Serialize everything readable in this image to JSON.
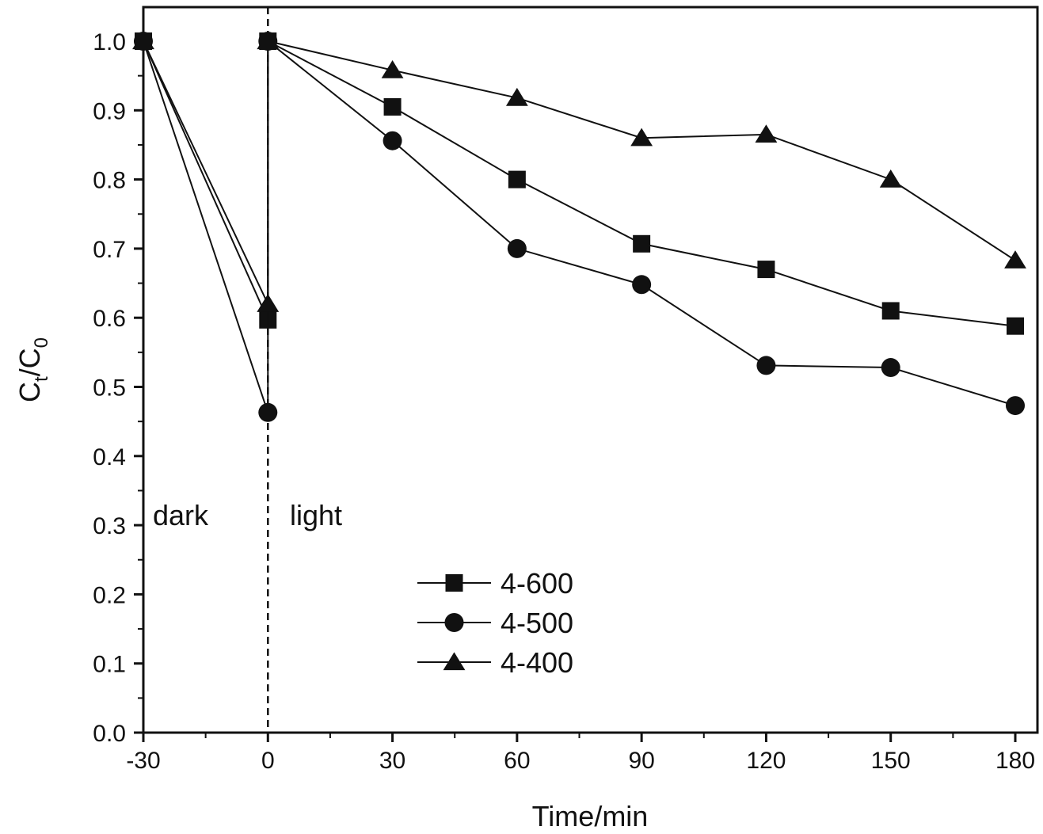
{
  "chart_data": {
    "type": "line",
    "xlabel": "Time/min",
    "ylabel": {
      "main": "C",
      "sub1": "t",
      "mid": "/C",
      "sub2": "0"
    },
    "xlim": [
      -30,
      180
    ],
    "ylim": [
      0,
      1.0
    ],
    "x_ticks": [
      "-30",
      "0",
      "30",
      "60",
      "90",
      "120",
      "150",
      "180"
    ],
    "y_ticks": [
      "0.0",
      "0.1",
      "0.2",
      "0.3",
      "0.4",
      "0.5",
      "0.6",
      "0.7",
      "0.8",
      "0.9",
      "1.0"
    ],
    "annotations": [
      "dark",
      "light"
    ],
    "divider_x": 0,
    "legend_position": "lower-middle",
    "series": [
      {
        "name": "4-600",
        "marker": "square",
        "x": [
          -30,
          0,
          0,
          30,
          60,
          90,
          120,
          150,
          180
        ],
        "y": [
          1.0,
          0.597,
          1.0,
          0.905,
          0.8,
          0.707,
          0.67,
          0.61,
          0.588
        ]
      },
      {
        "name": "4-500",
        "marker": "circle",
        "x": [
          -30,
          0,
          0,
          30,
          60,
          90,
          120,
          150,
          180
        ],
        "y": [
          1.0,
          0.463,
          1.0,
          0.856,
          0.7,
          0.648,
          0.531,
          0.528,
          0.473
        ]
      },
      {
        "name": "4-400",
        "marker": "triangle",
        "x": [
          -30,
          0,
          0,
          30,
          60,
          90,
          120,
          150,
          180
        ],
        "y": [
          1.0,
          0.62,
          1.0,
          0.958,
          0.918,
          0.86,
          0.865,
          0.8,
          0.683
        ]
      }
    ],
    "colors": {
      "line": "#111111",
      "marker": "#111111"
    }
  }
}
